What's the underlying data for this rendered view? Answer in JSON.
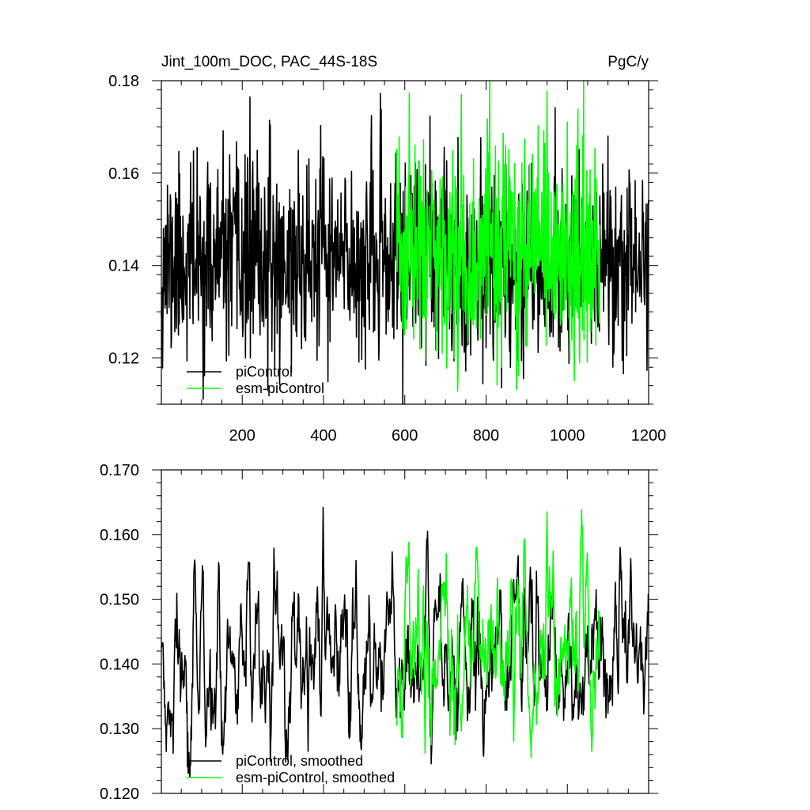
{
  "chart_data": [
    {
      "type": "line",
      "title_left": "Jint_100m_DOC, PAC_44S-18S",
      "title_right": "PgC/y",
      "xlabel": "",
      "ylabel": "",
      "xlim": [
        1,
        1200
      ],
      "ylim": [
        0.11,
        0.18
      ],
      "x_ticks": [
        200,
        400,
        600,
        800,
        1000,
        1200
      ],
      "x_tick_labels": [
        "200",
        "400",
        "600",
        "800",
        "1000",
        "1200"
      ],
      "y_ticks": [
        0.12,
        0.14,
        0.16,
        0.18
      ],
      "y_tick_labels": [
        "0.12",
        "0.14",
        "0.16",
        "0.18"
      ],
      "legend_position": "bottom-left",
      "series": [
        {
          "name": "piControl",
          "color": "#000000",
          "x_range": [
            1,
            1200
          ],
          "mean": 0.141,
          "std": 0.0105,
          "smoothing": 1,
          "seed": 11,
          "peaks": [
            [
              219,
              0.1765
            ],
            [
              393,
              0.1703
            ],
            [
              580,
              0.158
            ],
            [
              1100,
              0.168
            ]
          ],
          "troughs": [
            [
              25,
              0.1222
            ],
            [
              220,
              0.12
            ],
            [
              818,
              0.1195
            ],
            [
              1135,
              0.1195
            ]
          ]
        },
        {
          "name": "esm-piControl",
          "color": "#00ff00",
          "x_range": [
            580,
            1080
          ],
          "mean": 0.1425,
          "std": 0.0115,
          "smoothing": 1,
          "seed": 23,
          "peaks": [
            [
              611,
              0.1773
            ],
            [
              739,
              0.177
            ],
            [
              950,
              0.1777
            ],
            [
              1000,
              0.171
            ]
          ],
          "troughs": [
            [
              651,
              0.1195
            ],
            [
              900,
              0.1225
            ],
            [
              1070,
              0.1228
            ]
          ]
        }
      ]
    },
    {
      "type": "line",
      "title_left": "",
      "title_right": "",
      "xlabel": "",
      "ylabel": "",
      "xlim": [
        1,
        1200
      ],
      "ylim": [
        0.12,
        0.17
      ],
      "x_ticks": [
        200,
        400,
        600,
        800,
        1000,
        1200
      ],
      "x_tick_labels": [],
      "y_ticks": [
        0.12,
        0.13,
        0.14,
        0.15,
        0.16,
        0.17
      ],
      "y_tick_labels": [
        "0.120",
        "0.130",
        "0.140",
        "0.150",
        "0.160",
        "0.170"
      ],
      "legend_position": "bottom-left",
      "series": [
        {
          "name": "piControl, smoothed",
          "color": "#000000",
          "x_range": [
            1,
            1200
          ],
          "mean": 0.1408,
          "std": 0.0065,
          "smoothing": 4,
          "seed": 37,
          "peaks": [
            [
              399,
              0.1642
            ],
            [
              1130,
              0.158
            ],
            [
              286,
              0.1543
            ],
            [
              480,
              0.156
            ]
          ],
          "troughs": [
            [
              30,
              0.1262
            ],
            [
              362,
              0.1265
            ],
            [
              110,
              0.1272
            ]
          ]
        },
        {
          "name": "esm-piControl, smoothed",
          "color": "#00ff00",
          "x_range": [
            580,
            1080
          ],
          "mean": 0.1425,
          "std": 0.0068,
          "smoothing": 4,
          "seed": 41,
          "peaks": [
            [
              950,
              0.1635
            ],
            [
              610,
              0.1588
            ],
            [
              965,
              0.1575
            ]
          ],
          "troughs": [
            [
              650,
              0.1262
            ],
            [
              1060,
              0.1265
            ],
            [
              868,
              0.128
            ]
          ]
        }
      ]
    }
  ]
}
